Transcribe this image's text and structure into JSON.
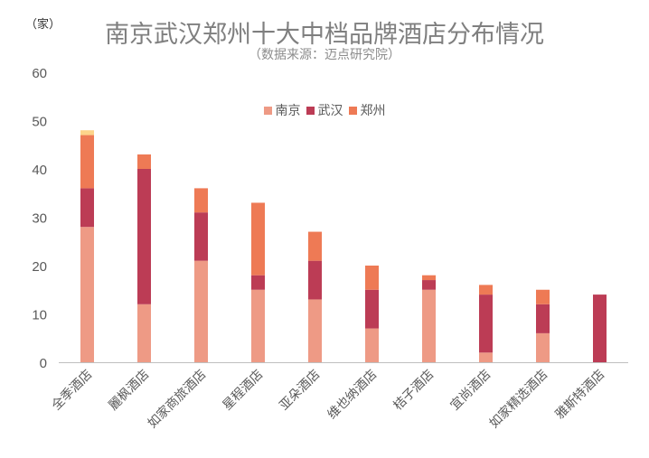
{
  "chart_data": {
    "type": "bar",
    "stacked": true,
    "title": "南京武汉郑州十大中档品牌酒店分布情况",
    "subtitle": "（数据来源：迈点研究院）",
    "ylabel": "（家）",
    "xlabel": "",
    "ylim": [
      0,
      60
    ],
    "yticks": [
      0,
      10,
      20,
      30,
      40,
      50,
      60
    ],
    "grid": false,
    "legend_position": "top-center",
    "categories": [
      "全季酒店",
      "麗枫酒店",
      "如家商旅酒店",
      "星程酒店",
      "亚朵酒店",
      "维也纳酒店",
      "桔子酒店",
      "宜尚酒店",
      "如家精选酒店",
      "雅斯特酒店"
    ],
    "series": [
      {
        "name": "南京",
        "color": "#EE9A85",
        "values": [
          28,
          12,
          21,
          15,
          13,
          7,
          15,
          2,
          6,
          0
        ]
      },
      {
        "name": "武汉",
        "color": "#BC3C55",
        "values": [
          8,
          28,
          10,
          3,
          8,
          8,
          2,
          12,
          6,
          14
        ]
      },
      {
        "name": "郑州",
        "color": "#EE7A55",
        "values": [
          11,
          3,
          5,
          15,
          6,
          5,
          1,
          2,
          3,
          0
        ]
      },
      {
        "color": "#FDD48A",
        "values": [
          1,
          0,
          0,
          0,
          0,
          0,
          0,
          0,
          0,
          0
        ]
      }
    ]
  }
}
